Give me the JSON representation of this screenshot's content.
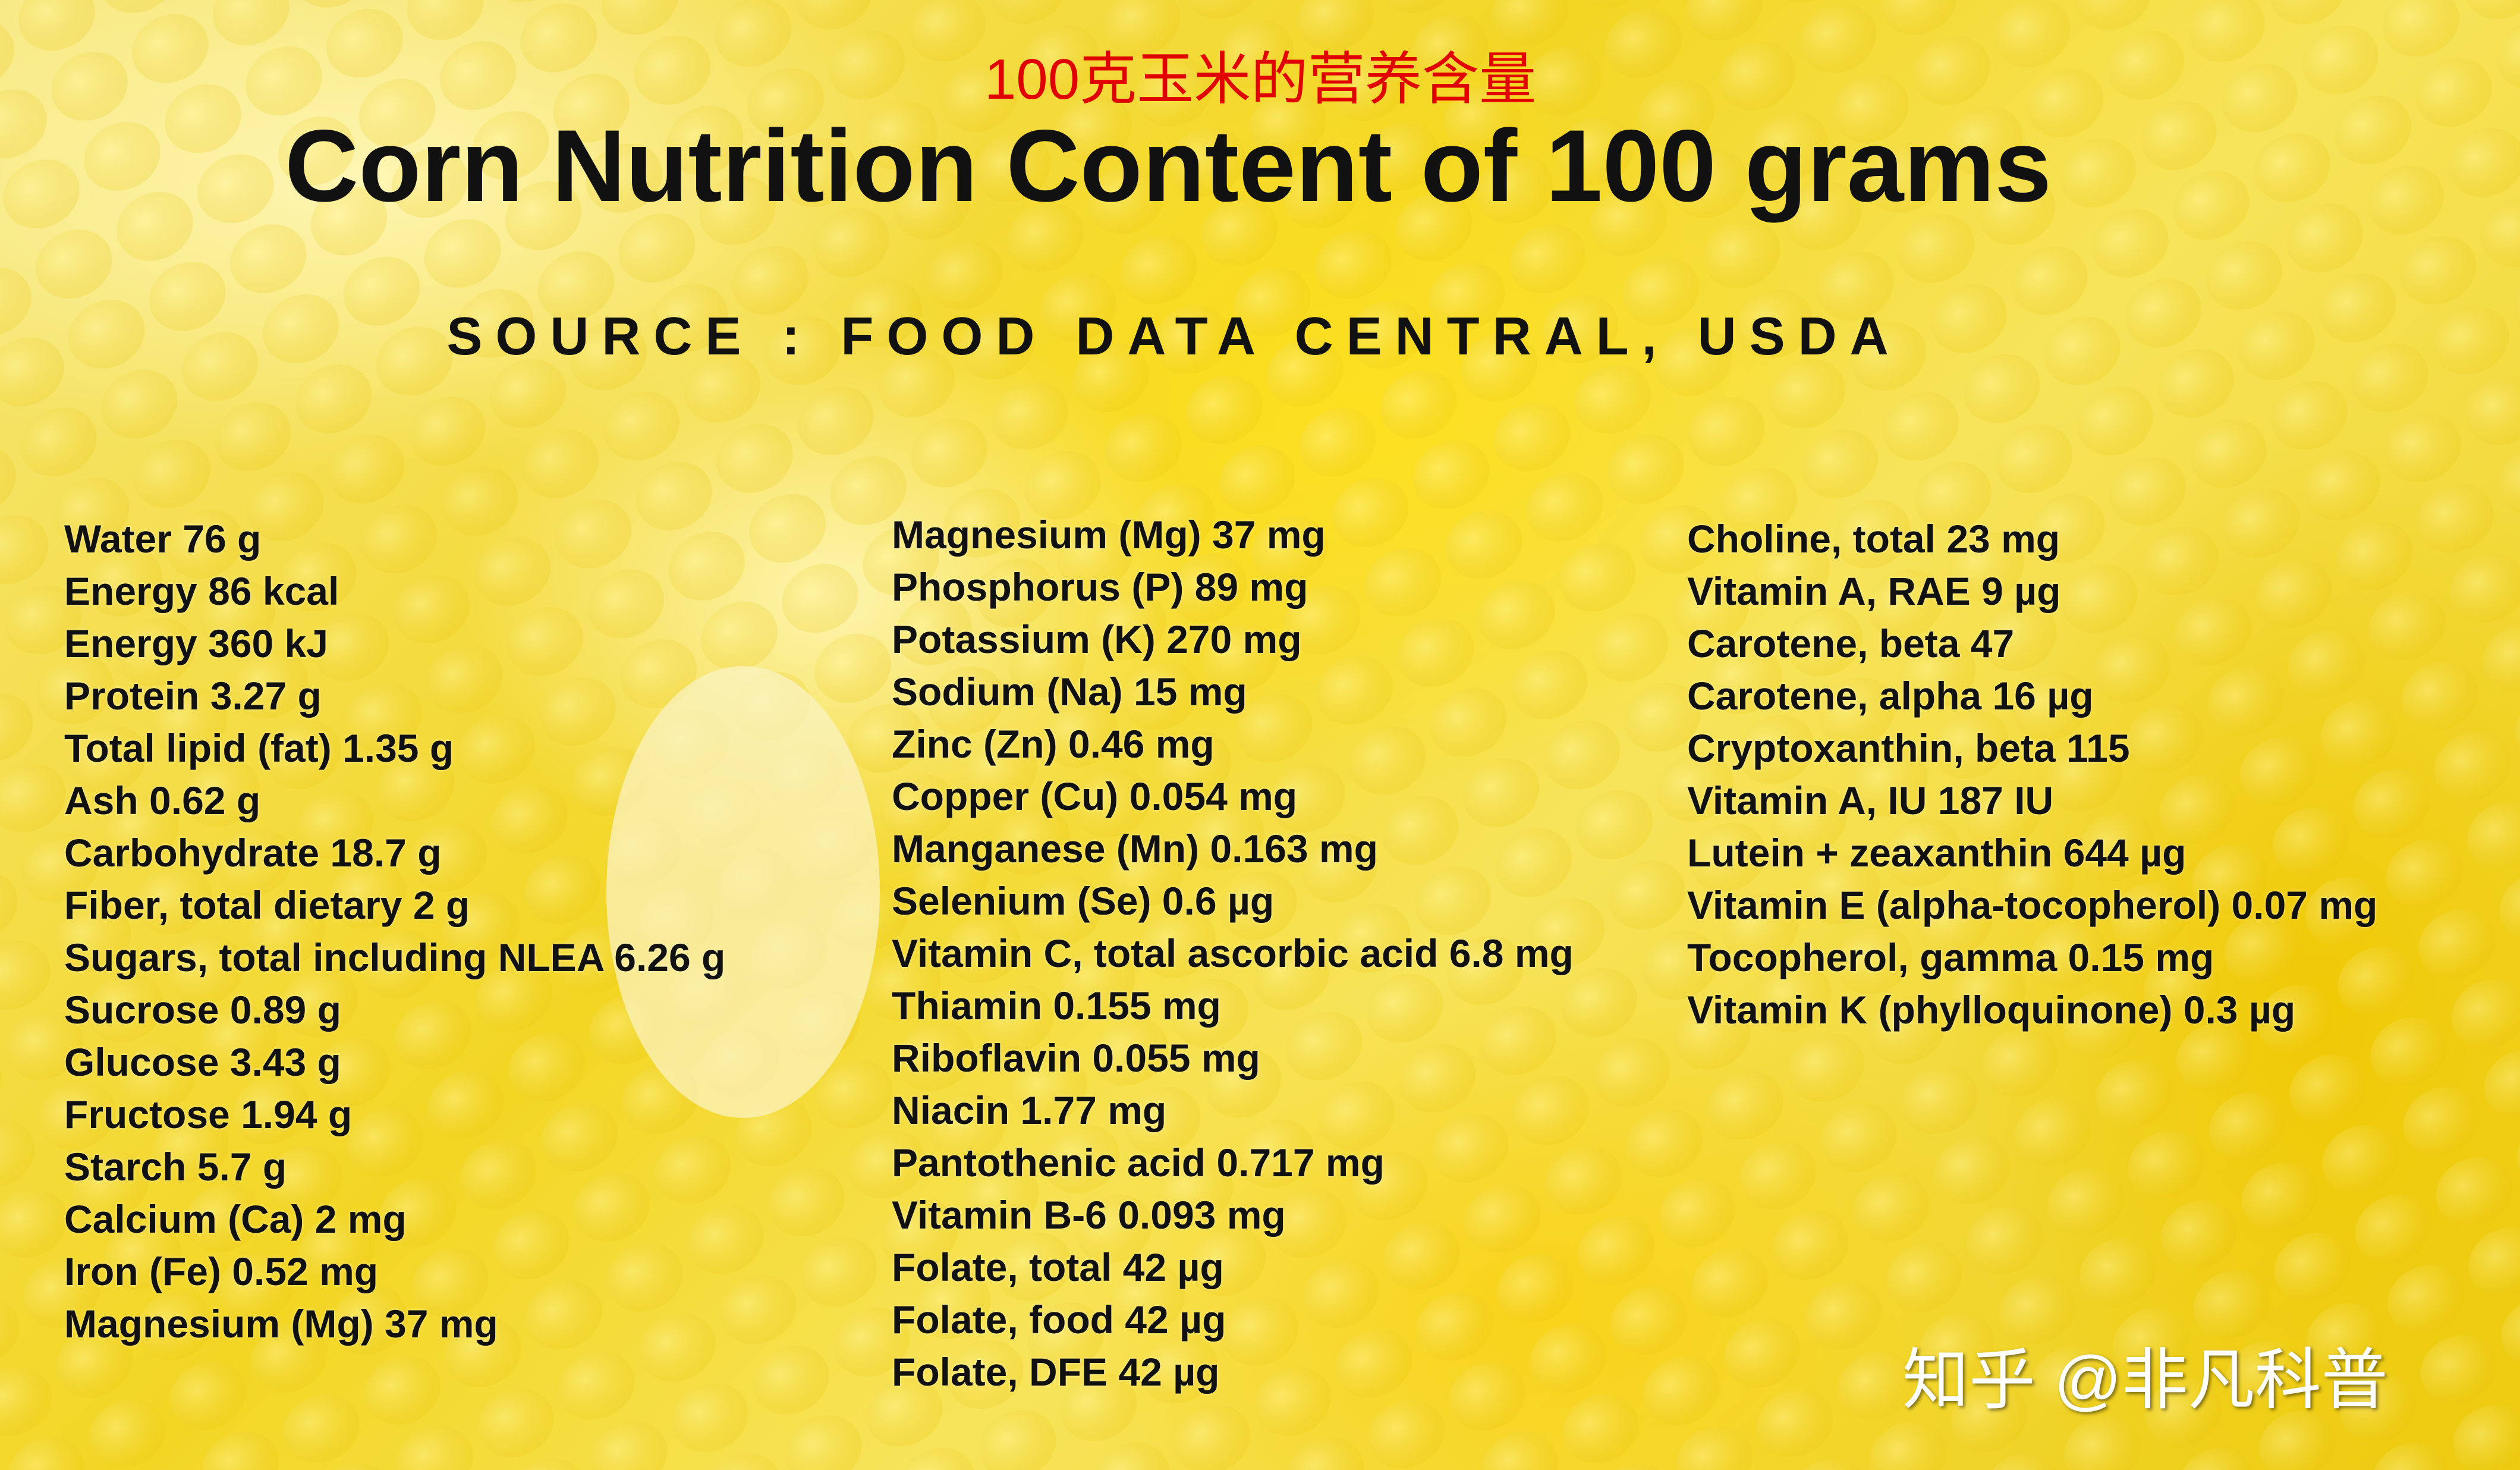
{
  "header": {
    "chinese_title": "100克玉米的营养含量",
    "title": "Corn Nutrition Content of 100 grams",
    "source": "SOURCE : FOOD DATA CENTRAL, USDA"
  },
  "columns": [
    [
      "Water 76 g",
      "Energy 86 kcal",
      "Energy 360 kJ",
      "Protein 3.27 g",
      "Total lipid (fat) 1.35 g",
      "Ash 0.62 g",
      "Carbohydrate 18.7 g",
      "Fiber, total dietary 2 g",
      "Sugars, total including NLEA 6.26 g",
      "Sucrose 0.89 g",
      "Glucose 3.43 g",
      "Fructose 1.94 g",
      "Starch 5.7 g",
      "Calcium (Ca) 2 mg",
      "Iron (Fe) 0.52 mg",
      "Magnesium (Mg) 37 mg"
    ],
    [
      "Magnesium (Mg) 37 mg",
      "Phosphorus (P) 89 mg",
      "Potassium (K) 270 mg",
      "Sodium (Na) 15 mg",
      "Zinc (Zn) 0.46 mg",
      "Copper (Cu) 0.054 mg",
      "Manganese (Mn) 0.163 mg",
      "Selenium (Se) 0.6 µg",
      "Vitamin C, total ascorbic acid 6.8 mg",
      "Thiamin 0.155 mg",
      "Riboflavin 0.055 mg",
      "Niacin 1.77 mg",
      "Pantothenic acid 0.717 mg",
      "Vitamin B-6 0.093 mg",
      "Folate, total 42 µg",
      "Folate, food 42 µg",
      "Folate, DFE 42 µg"
    ],
    [
      "Choline, total 23 mg",
      "Vitamin A, RAE 9 µg",
      "Carotene, beta 47",
      "Carotene, alpha 16 µg",
      "Cryptoxanthin, beta 115",
      "Vitamin A, IU 187 IU",
      "Lutein + zeaxanthin 644 µg",
      "Vitamin E (alpha-tocopherol) 0.07 mg",
      "Tocopherol, gamma 0.15 mg",
      "Vitamin K (phylloquinone) 0.3 µg"
    ]
  ],
  "watermark": "知乎 @非凡科普"
}
